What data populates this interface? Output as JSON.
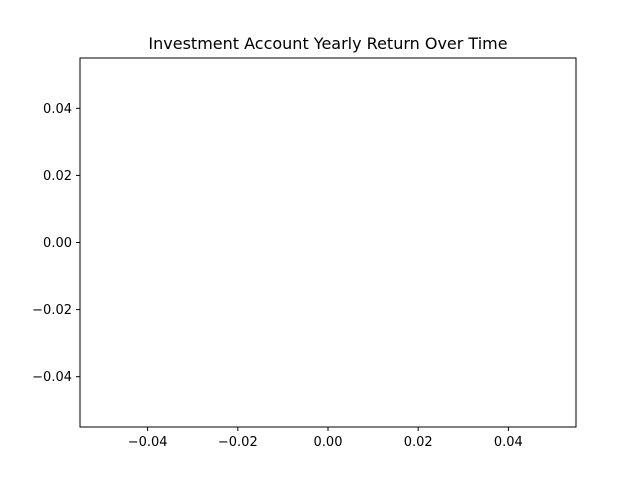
{
  "chart_data": {
    "type": "line",
    "title": "Investment Account Yearly Return Over Time",
    "xlabel": "",
    "ylabel": "",
    "series": [
      {
        "x": [],
        "y": []
      }
    ],
    "xlim": [
      -0.055,
      0.055
    ],
    "ylim": [
      -0.055,
      0.055
    ],
    "x_ticks": [
      -0.04,
      -0.02,
      0.0,
      0.02,
      0.04
    ],
    "y_ticks": [
      -0.04,
      -0.02,
      0.0,
      0.02,
      0.04
    ],
    "x_tick_labels": [
      "−0.04",
      "−0.02",
      "0.00",
      "0.02",
      "0.04"
    ],
    "y_tick_labels": [
      "−0.04",
      "−0.02",
      "0.00",
      "0.02",
      "0.04"
    ],
    "grid": false,
    "legend": "none"
  }
}
